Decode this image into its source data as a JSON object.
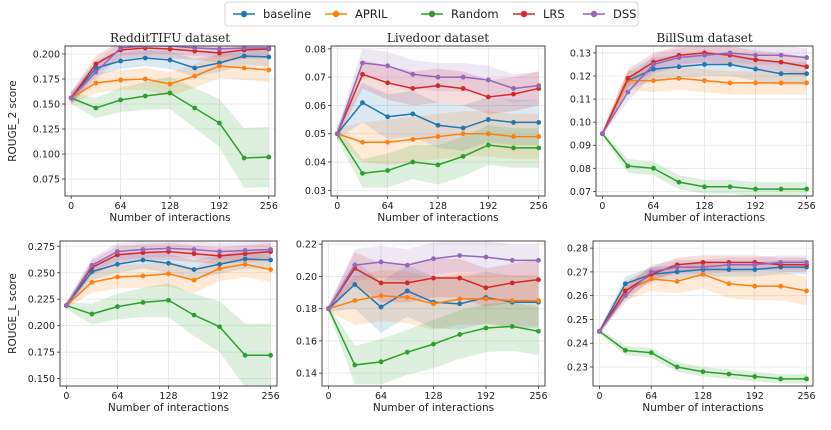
{
  "legend": [
    {
      "name": "baseline",
      "color": "#1f77b4"
    },
    {
      "name": "APRIL",
      "color": "#ff7f0e"
    },
    {
      "name": "Random",
      "color": "#2ca02c"
    },
    {
      "name": "LRS",
      "color": "#d62728"
    },
    {
      "name": "DSS",
      "color": "#9467bd"
    }
  ],
  "chart_data": [
    {
      "type": "line",
      "title": "RedditTIFU dataset",
      "xlabel": "Number of interactions",
      "ylabel": "ROUGE_2 score",
      "xticks": [
        0,
        64,
        128,
        192,
        256
      ],
      "xlim": [
        -8,
        264
      ],
      "ylim": [
        0.058,
        0.208
      ],
      "yticks": [
        0.075,
        0.1,
        0.125,
        0.15,
        0.175,
        0.2
      ],
      "ytick_labels": [
        "0.075",
        "0.100",
        "0.125",
        "0.150",
        "0.175",
        "0.200"
      ],
      "x": [
        0,
        32,
        64,
        96,
        128,
        160,
        192,
        224,
        256
      ],
      "series": [
        {
          "name": "baseline",
          "values": [
            0.156,
            0.186,
            0.193,
            0.196,
            0.194,
            0.186,
            0.191,
            0.198,
            0.197
          ],
          "band": [
            0.006,
            0.008,
            0.008,
            0.008,
            0.009,
            0.009,
            0.009,
            0.009,
            0.009
          ]
        },
        {
          "name": "APRIL",
          "values": [
            0.156,
            0.171,
            0.174,
            0.175,
            0.17,
            0.178,
            0.188,
            0.186,
            0.184
          ],
          "band": [
            0.006,
            0.01,
            0.01,
            0.011,
            0.012,
            0.012,
            0.012,
            0.012,
            0.012
          ]
        },
        {
          "name": "Random",
          "values": [
            0.156,
            0.146,
            0.154,
            0.158,
            0.161,
            0.146,
            0.131,
            0.096,
            0.097
          ],
          "band": [
            0.006,
            0.01,
            0.012,
            0.014,
            0.016,
            0.02,
            0.024,
            0.03,
            0.03
          ]
        },
        {
          "name": "LRS",
          "values": [
            0.156,
            0.19,
            0.204,
            0.206,
            0.205,
            0.203,
            0.201,
            0.204,
            0.205
          ],
          "band": [
            0.006,
            0.008,
            0.009,
            0.009,
            0.009,
            0.009,
            0.009,
            0.009,
            0.009
          ]
        },
        {
          "name": "DSS",
          "values": [
            0.156,
            0.182,
            0.206,
            0.208,
            0.208,
            0.206,
            0.205,
            0.206,
            0.206
          ],
          "band": [
            0.006,
            0.008,
            0.008,
            0.008,
            0.008,
            0.008,
            0.008,
            0.008,
            0.008
          ]
        }
      ]
    },
    {
      "type": "line",
      "title": "Livedoor dataset",
      "xlabel": "Number of interactions",
      "ylabel": "",
      "xticks": [
        0,
        64,
        128,
        192,
        256
      ],
      "xlim": [
        -8,
        264
      ],
      "ylim": [
        0.028,
        0.081
      ],
      "yticks": [
        0.03,
        0.04,
        0.05,
        0.06,
        0.07,
        0.08
      ],
      "ytick_labels": [
        "0.03",
        "0.04",
        "0.05",
        "0.06",
        "0.07",
        "0.08"
      ],
      "x": [
        0,
        32,
        64,
        96,
        128,
        160,
        192,
        224,
        256
      ],
      "series": [
        {
          "name": "baseline",
          "values": [
            0.05,
            0.061,
            0.056,
            0.057,
            0.053,
            0.052,
            0.055,
            0.054,
            0.054
          ],
          "band": [
            0.002,
            0.007,
            0.008,
            0.008,
            0.008,
            0.008,
            0.008,
            0.008,
            0.008
          ]
        },
        {
          "name": "APRIL",
          "values": [
            0.05,
            0.047,
            0.047,
            0.048,
            0.049,
            0.05,
            0.05,
            0.049,
            0.049
          ],
          "band": [
            0.002,
            0.007,
            0.008,
            0.008,
            0.008,
            0.008,
            0.008,
            0.008,
            0.008
          ]
        },
        {
          "name": "Random",
          "values": [
            0.05,
            0.036,
            0.037,
            0.04,
            0.039,
            0.042,
            0.046,
            0.045,
            0.045
          ],
          "band": [
            0.002,
            0.005,
            0.006,
            0.006,
            0.007,
            0.007,
            0.007,
            0.007,
            0.007
          ]
        },
        {
          "name": "LRS",
          "values": [
            0.05,
            0.071,
            0.068,
            0.066,
            0.067,
            0.066,
            0.063,
            0.064,
            0.066
          ],
          "band": [
            0.002,
            0.005,
            0.006,
            0.006,
            0.006,
            0.006,
            0.006,
            0.006,
            0.006
          ]
        },
        {
          "name": "DSS",
          "values": [
            0.05,
            0.075,
            0.074,
            0.071,
            0.07,
            0.07,
            0.069,
            0.066,
            0.067
          ],
          "band": [
            0.002,
            0.005,
            0.005,
            0.005,
            0.005,
            0.005,
            0.005,
            0.005,
            0.005
          ]
        }
      ]
    },
    {
      "type": "line",
      "title": "BillSum dataset",
      "xlabel": "Number of interactions",
      "ylabel": "",
      "xticks": [
        0,
        64,
        128,
        192,
        256
      ],
      "xlim": [
        -8,
        264
      ],
      "ylim": [
        0.068,
        0.133
      ],
      "yticks": [
        0.07,
        0.08,
        0.09,
        0.1,
        0.11,
        0.12,
        0.13
      ],
      "ytick_labels": [
        "0.07",
        "0.08",
        "0.09",
        "0.10",
        "0.11",
        "0.12",
        "0.13"
      ],
      "x": [
        0,
        32,
        64,
        96,
        128,
        160,
        192,
        224,
        256
      ],
      "series": [
        {
          "name": "baseline",
          "values": [
            0.095,
            0.118,
            0.123,
            0.124,
            0.125,
            0.125,
            0.123,
            0.121,
            0.121
          ],
          "band": [
            0.001,
            0.004,
            0.005,
            0.005,
            0.005,
            0.005,
            0.005,
            0.005,
            0.005
          ]
        },
        {
          "name": "APRIL",
          "values": [
            0.095,
            0.118,
            0.118,
            0.119,
            0.118,
            0.117,
            0.117,
            0.117,
            0.117
          ],
          "band": [
            0.001,
            0.004,
            0.005,
            0.005,
            0.005,
            0.005,
            0.005,
            0.005,
            0.005
          ]
        },
        {
          "name": "Random",
          "values": [
            0.095,
            0.081,
            0.08,
            0.074,
            0.072,
            0.072,
            0.071,
            0.071,
            0.071
          ],
          "band": [
            0.001,
            0.003,
            0.003,
            0.003,
            0.003,
            0.003,
            0.003,
            0.003,
            0.003
          ]
        },
        {
          "name": "LRS",
          "values": [
            0.095,
            0.119,
            0.126,
            0.129,
            0.13,
            0.129,
            0.127,
            0.126,
            0.124
          ],
          "band": [
            0.001,
            0.004,
            0.004,
            0.004,
            0.004,
            0.004,
            0.004,
            0.004,
            0.004
          ]
        },
        {
          "name": "DSS",
          "values": [
            0.095,
            0.113,
            0.125,
            0.128,
            0.129,
            0.13,
            0.129,
            0.129,
            0.128
          ],
          "band": [
            0.001,
            0.004,
            0.004,
            0.004,
            0.004,
            0.004,
            0.004,
            0.004,
            0.004
          ]
        }
      ]
    },
    {
      "type": "line",
      "title": "",
      "xlabel": "Number of interactions",
      "ylabel": "ROUGE_L score",
      "xticks": [
        0,
        64,
        128,
        192,
        256
      ],
      "xlim": [
        -8,
        264
      ],
      "ylim": [
        0.143,
        0.28
      ],
      "yticks": [
        0.15,
        0.175,
        0.2,
        0.225,
        0.25,
        0.275
      ],
      "ytick_labels": [
        "0.150",
        "0.175",
        "0.200",
        "0.225",
        "0.250",
        "0.275"
      ],
      "x": [
        0,
        32,
        64,
        96,
        128,
        160,
        192,
        224,
        256
      ],
      "series": [
        {
          "name": "baseline",
          "values": [
            0.219,
            0.251,
            0.258,
            0.262,
            0.259,
            0.253,
            0.258,
            0.263,
            0.262
          ],
          "band": [
            0.003,
            0.008,
            0.008,
            0.008,
            0.009,
            0.009,
            0.009,
            0.009,
            0.009
          ]
        },
        {
          "name": "APRIL",
          "values": [
            0.219,
            0.241,
            0.246,
            0.247,
            0.249,
            0.243,
            0.254,
            0.258,
            0.253
          ],
          "band": [
            0.003,
            0.01,
            0.011,
            0.011,
            0.012,
            0.012,
            0.012,
            0.012,
            0.012
          ]
        },
        {
          "name": "Random",
          "values": [
            0.219,
            0.211,
            0.218,
            0.222,
            0.224,
            0.21,
            0.199,
            0.172,
            0.172
          ],
          "band": [
            0.003,
            0.01,
            0.012,
            0.014,
            0.016,
            0.02,
            0.024,
            0.03,
            0.03
          ]
        },
        {
          "name": "LRS",
          "values": [
            0.219,
            0.255,
            0.267,
            0.269,
            0.27,
            0.268,
            0.266,
            0.268,
            0.27
          ],
          "band": [
            0.003,
            0.007,
            0.008,
            0.008,
            0.008,
            0.008,
            0.008,
            0.008,
            0.008
          ]
        },
        {
          "name": "DSS",
          "values": [
            0.219,
            0.257,
            0.27,
            0.272,
            0.273,
            0.272,
            0.27,
            0.271,
            0.272
          ],
          "band": [
            0.003,
            0.007,
            0.008,
            0.008,
            0.008,
            0.008,
            0.008,
            0.008,
            0.008
          ]
        }
      ]
    },
    {
      "type": "line",
      "title": "",
      "xlabel": "Number of interactions",
      "ylabel": "",
      "xticks": [
        0,
        64,
        128,
        192,
        256
      ],
      "xlim": [
        -8,
        264
      ],
      "ylim": [
        0.132,
        0.222
      ],
      "yticks": [
        0.14,
        0.16,
        0.18,
        0.2,
        0.22
      ],
      "ytick_labels": [
        "0.14",
        "0.16",
        "0.18",
        "0.20",
        "0.22"
      ],
      "x": [
        0,
        32,
        64,
        96,
        128,
        160,
        192,
        224,
        256
      ],
      "series": [
        {
          "name": "baseline",
          "values": [
            0.18,
            0.195,
            0.181,
            0.191,
            0.184,
            0.183,
            0.187,
            0.184,
            0.184
          ],
          "band": [
            0.002,
            0.015,
            0.016,
            0.016,
            0.016,
            0.016,
            0.016,
            0.016,
            0.016
          ]
        },
        {
          "name": "APRIL",
          "values": [
            0.18,
            0.185,
            0.188,
            0.187,
            0.183,
            0.186,
            0.186,
            0.185,
            0.185
          ],
          "band": [
            0.002,
            0.015,
            0.016,
            0.016,
            0.016,
            0.016,
            0.016,
            0.016,
            0.016
          ]
        },
        {
          "name": "Random",
          "values": [
            0.18,
            0.145,
            0.147,
            0.153,
            0.158,
            0.164,
            0.168,
            0.169,
            0.166
          ],
          "band": [
            0.002,
            0.012,
            0.014,
            0.014,
            0.015,
            0.015,
            0.015,
            0.015,
            0.015
          ]
        },
        {
          "name": "LRS",
          "values": [
            0.18,
            0.205,
            0.196,
            0.196,
            0.199,
            0.199,
            0.193,
            0.196,
            0.198
          ],
          "band": [
            0.002,
            0.01,
            0.012,
            0.012,
            0.012,
            0.012,
            0.012,
            0.012,
            0.012
          ]
        },
        {
          "name": "DSS",
          "values": [
            0.18,
            0.207,
            0.209,
            0.207,
            0.211,
            0.213,
            0.212,
            0.21,
            0.21
          ],
          "band": [
            0.002,
            0.01,
            0.01,
            0.01,
            0.01,
            0.01,
            0.01,
            0.01,
            0.01
          ]
        }
      ]
    },
    {
      "type": "line",
      "title": "",
      "xlabel": "Number of interactions",
      "ylabel": "",
      "xticks": [
        0,
        64,
        128,
        192,
        256
      ],
      "xlim": [
        -8,
        264
      ],
      "ylim": [
        0.222,
        0.283
      ],
      "yticks": [
        0.23,
        0.24,
        0.25,
        0.26,
        0.27,
        0.28
      ],
      "ytick_labels": [
        "0.23",
        "0.24",
        "0.25",
        "0.26",
        "0.27",
        "0.28"
      ],
      "x": [
        0,
        32,
        64,
        96,
        128,
        160,
        192,
        224,
        256
      ],
      "series": [
        {
          "name": "baseline",
          "values": [
            0.245,
            0.265,
            0.269,
            0.27,
            0.271,
            0.271,
            0.271,
            0.272,
            0.272
          ],
          "band": [
            0.001,
            0.003,
            0.003,
            0.003,
            0.003,
            0.003,
            0.003,
            0.003,
            0.003
          ]
        },
        {
          "name": "APRIL",
          "values": [
            0.245,
            0.262,
            0.267,
            0.266,
            0.269,
            0.265,
            0.264,
            0.264,
            0.262
          ],
          "band": [
            0.001,
            0.004,
            0.005,
            0.005,
            0.006,
            0.006,
            0.006,
            0.006,
            0.006
          ]
        },
        {
          "name": "Random",
          "values": [
            0.245,
            0.237,
            0.236,
            0.23,
            0.228,
            0.227,
            0.226,
            0.225,
            0.225
          ],
          "band": [
            0.001,
            0.002,
            0.002,
            0.002,
            0.002,
            0.002,
            0.002,
            0.002,
            0.002
          ]
        },
        {
          "name": "LRS",
          "values": [
            0.245,
            0.262,
            0.269,
            0.273,
            0.274,
            0.274,
            0.274,
            0.273,
            0.273
          ],
          "band": [
            0.001,
            0.003,
            0.003,
            0.003,
            0.003,
            0.003,
            0.003,
            0.003,
            0.003
          ]
        },
        {
          "name": "DSS",
          "values": [
            0.245,
            0.26,
            0.27,
            0.272,
            0.272,
            0.273,
            0.273,
            0.274,
            0.274
          ],
          "band": [
            0.001,
            0.003,
            0.003,
            0.003,
            0.003,
            0.003,
            0.003,
            0.003,
            0.003
          ]
        }
      ]
    }
  ]
}
